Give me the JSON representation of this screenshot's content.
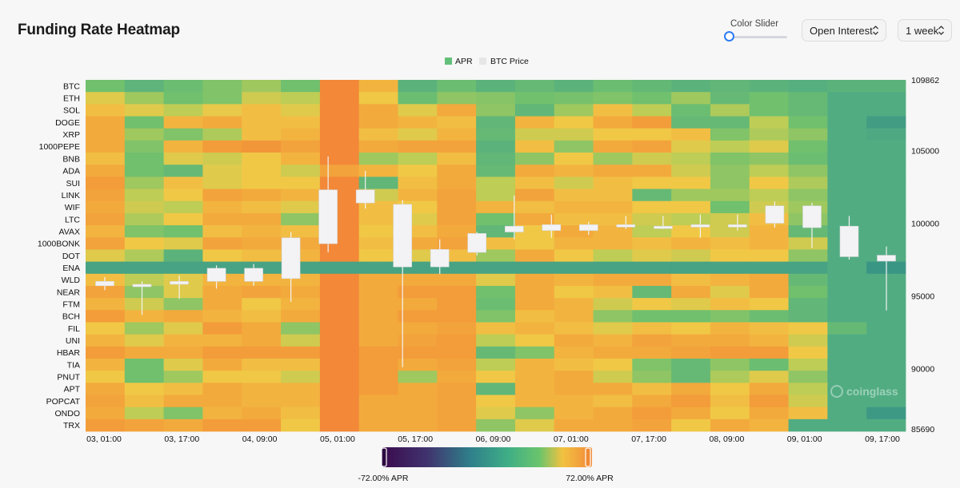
{
  "title": "Funding Rate Heatmap",
  "controls": {
    "slider_label": "Color Slider",
    "slider_value": 0.05,
    "metric_select": "Open Interest",
    "period_select": "1 week"
  },
  "watermark": "coinglass",
  "colors": {
    "apr_legend": "#63c07a",
    "price_legend": "#e6e6e6",
    "candle": "#f3f3f5",
    "slider_accent": "#2b7bf3"
  },
  "chart_data": {
    "type": "heatmap",
    "title": "Funding Rate Heatmap",
    "legend": [
      "APR",
      "BTC Price"
    ],
    "rows": [
      "BTC",
      "ETH",
      "SOL",
      "DOGE",
      "XRP",
      "1000PEPE",
      "BNB",
      "ADA",
      "SUI",
      "LINK",
      "WIF",
      "LTC",
      "AVAX",
      "1000BONK",
      "DOT",
      "ENA",
      "WLD",
      "NEAR",
      "FTM",
      "BCH",
      "FIL",
      "UNI",
      "HBAR",
      "TIA",
      "PNUT",
      "APT",
      "POPCAT",
      "ONDO",
      "TRX"
    ],
    "x_ticks": [
      "03, 01:00",
      "03, 17:00",
      "04, 09:00",
      "05, 01:00",
      "05, 17:00",
      "06, 09:00",
      "07, 01:00",
      "07, 17:00",
      "08, 09:00",
      "09, 01:00",
      "09, 17:00"
    ],
    "y2_ticks": [
      109862,
      105000,
      100000,
      95000,
      90000,
      85690
    ],
    "y2_range": [
      85690,
      109862
    ],
    "color_scale": {
      "min": -72,
      "max": 72,
      "min_label": "-72.00% APR",
      "max_label": "72.00% APR"
    },
    "apr_values": [
      [
        40,
        33,
        38,
        42,
        46,
        40,
        72,
        60,
        32,
        38,
        32,
        36,
        32,
        38,
        35,
        32,
        34,
        32,
        30,
        32,
        32
      ],
      [
        54,
        46,
        40,
        42,
        52,
        50,
        72,
        56,
        38,
        44,
        43,
        40,
        41,
        42,
        40,
        46,
        36,
        40,
        36,
        28,
        28
      ],
      [
        58,
        54,
        50,
        55,
        58,
        54,
        72,
        62,
        54,
        62,
        44,
        34,
        46,
        58,
        50,
        38,
        48,
        40,
        36,
        28,
        28
      ],
      [
        62,
        40,
        60,
        62,
        58,
        58,
        72,
        62,
        60,
        58,
        34,
        60,
        56,
        62,
        66,
        36,
        36,
        50,
        40,
        28,
        18
      ],
      [
        62,
        46,
        42,
        48,
        58,
        60,
        72,
        58,
        54,
        60,
        36,
        52,
        52,
        56,
        56,
        58,
        42,
        48,
        44,
        28,
        26
      ],
      [
        62,
        42,
        60,
        66,
        68,
        64,
        72,
        62,
        64,
        64,
        32,
        58,
        44,
        62,
        64,
        54,
        50,
        54,
        40,
        28,
        28
      ],
      [
        58,
        40,
        54,
        52,
        56,
        60,
        72,
        46,
        50,
        58,
        34,
        44,
        56,
        46,
        52,
        50,
        42,
        44,
        38,
        28,
        28
      ],
      [
        62,
        40,
        36,
        54,
        56,
        52,
        64,
        60,
        56,
        62,
        36,
        62,
        60,
        62,
        62,
        52,
        44,
        50,
        44,
        28,
        28
      ],
      [
        66,
        46,
        58,
        54,
        56,
        56,
        72,
        34,
        58,
        62,
        50,
        58,
        52,
        58,
        56,
        56,
        44,
        56,
        48,
        28,
        28
      ],
      [
        64,
        50,
        56,
        64,
        62,
        60,
        72,
        52,
        60,
        64,
        50,
        64,
        58,
        58,
        36,
        46,
        46,
        50,
        44,
        28,
        28
      ],
      [
        62,
        52,
        50,
        60,
        58,
        54,
        72,
        58,
        56,
        64,
        60,
        58,
        60,
        60,
        56,
        56,
        40,
        52,
        46,
        28,
        28
      ],
      [
        64,
        48,
        56,
        62,
        62,
        44,
        72,
        58,
        54,
        64,
        40,
        62,
        58,
        58,
        52,
        50,
        52,
        58,
        44,
        28,
        28
      ],
      [
        60,
        42,
        40,
        58,
        60,
        58,
        72,
        56,
        58,
        62,
        34,
        56,
        62,
        60,
        50,
        56,
        52,
        60,
        36,
        28,
        28
      ],
      [
        64,
        56,
        54,
        64,
        62,
        62,
        72,
        58,
        62,
        64,
        58,
        56,
        60,
        60,
        58,
        60,
        58,
        60,
        52,
        28,
        28
      ],
      [
        54,
        48,
        32,
        56,
        58,
        60,
        72,
        56,
        54,
        58,
        46,
        62,
        56,
        50,
        54,
        52,
        56,
        56,
        44,
        28,
        28
      ],
      [
        22,
        22,
        22,
        22,
        22,
        22,
        22,
        22,
        22,
        22,
        22,
        22,
        22,
        22,
        22,
        22,
        22,
        22,
        22,
        28,
        14
      ],
      [
        58,
        50,
        54,
        60,
        60,
        60,
        72,
        62,
        62,
        62,
        54,
        62,
        60,
        62,
        62,
        58,
        60,
        62,
        36,
        28,
        28
      ],
      [
        64,
        44,
        54,
        62,
        64,
        62,
        72,
        62,
        66,
        66,
        40,
        62,
        56,
        58,
        36,
        62,
        54,
        62,
        40,
        28,
        28
      ],
      [
        60,
        52,
        44,
        62,
        56,
        60,
        72,
        62,
        62,
        66,
        38,
        62,
        60,
        52,
        56,
        54,
        58,
        56,
        34,
        28,
        28
      ],
      [
        66,
        60,
        62,
        60,
        58,
        62,
        72,
        62,
        66,
        66,
        42,
        58,
        60,
        44,
        40,
        40,
        42,
        38,
        34,
        28,
        28
      ],
      [
        56,
        46,
        54,
        66,
        62,
        44,
        72,
        62,
        62,
        64,
        58,
        60,
        58,
        54,
        58,
        56,
        60,
        58,
        56,
        36,
        28
      ],
      [
        60,
        54,
        60,
        60,
        62,
        52,
        72,
        62,
        64,
        66,
        50,
        56,
        62,
        60,
        64,
        62,
        62,
        60,
        52,
        28,
        28
      ],
      [
        66,
        62,
        62,
        66,
        66,
        66,
        72,
        66,
        66,
        66,
        36,
        42,
        60,
        62,
        62,
        64,
        66,
        66,
        56,
        28,
        28
      ],
      [
        60,
        40,
        54,
        62,
        58,
        58,
        72,
        66,
        62,
        64,
        50,
        60,
        58,
        56,
        42,
        36,
        44,
        38,
        50,
        28,
        28
      ],
      [
        56,
        40,
        46,
        56,
        56,
        52,
        72,
        66,
        46,
        62,
        56,
        60,
        62,
        52,
        44,
        36,
        48,
        54,
        44,
        28,
        28
      ],
      [
        62,
        56,
        58,
        62,
        60,
        60,
        72,
        66,
        62,
        64,
        34,
        60,
        62,
        62,
        58,
        62,
        56,
        62,
        50,
        28,
        28
      ],
      [
        64,
        58,
        62,
        62,
        60,
        60,
        72,
        62,
        62,
        64,
        56,
        60,
        60,
        58,
        62,
        66,
        58,
        66,
        52,
        28,
        28
      ],
      [
        62,
        50,
        42,
        60,
        62,
        58,
        72,
        62,
        62,
        64,
        54,
        44,
        60,
        62,
        66,
        62,
        56,
        62,
        58,
        28,
        16
      ],
      [
        66,
        64,
        62,
        66,
        66,
        56,
        72,
        62,
        62,
        64,
        44,
        54,
        62,
        62,
        64,
        56,
        62,
        60,
        28,
        28,
        28
      ]
    ],
    "btc_candles": [
      {
        "open": 96000,
        "close": 95700,
        "high": 96300,
        "low": 95400
      },
      {
        "open": 95700,
        "close": 95800,
        "high": 96000,
        "low": 93700
      },
      {
        "open": 95800,
        "close": 96000,
        "high": 96400,
        "low": 94800
      },
      {
        "open": 96000,
        "close": 96900,
        "high": 97100,
        "low": 95500
      },
      {
        "open": 96000,
        "close": 96900,
        "high": 97200,
        "low": 95700
      },
      {
        "open": 96200,
        "close": 99000,
        "high": 99400,
        "low": 94600
      },
      {
        "open": 98600,
        "close": 102300,
        "high": 104600,
        "low": 98000
      },
      {
        "open": 102300,
        "close": 101400,
        "high": 103600,
        "low": 101000
      },
      {
        "open": 101300,
        "close": 97000,
        "high": 101600,
        "low": 90100
      },
      {
        "open": 97000,
        "close": 98200,
        "high": 98900,
        "low": 96500
      },
      {
        "open": 98000,
        "close": 99300,
        "high": 99400,
        "low": 97800
      },
      {
        "open": 99800,
        "close": 99400,
        "high": 101900,
        "low": 98900
      },
      {
        "open": 99900,
        "close": 99500,
        "high": 100600,
        "low": 99000
      },
      {
        "open": 99900,
        "close": 99500,
        "high": 100100,
        "low": 99200
      },
      {
        "open": 99900,
        "close": 99800,
        "high": 100500,
        "low": 99600
      },
      {
        "open": 99800,
        "close": 99800,
        "high": 100500,
        "low": 99600
      },
      {
        "open": 99900,
        "close": 99800,
        "high": 100600,
        "low": 99000
      },
      {
        "open": 99800,
        "close": 99900,
        "high": 100600,
        "low": 99500
      },
      {
        "open": 100000,
        "close": 101200,
        "high": 101500,
        "low": 99700
      },
      {
        "open": 101200,
        "close": 99700,
        "high": 101400,
        "low": 98300
      },
      {
        "open": 99800,
        "close": 97700,
        "high": 100500,
        "low": 97500
      },
      {
        "open": 97800,
        "close": 97400,
        "high": 98400,
        "low": 94000
      }
    ]
  }
}
